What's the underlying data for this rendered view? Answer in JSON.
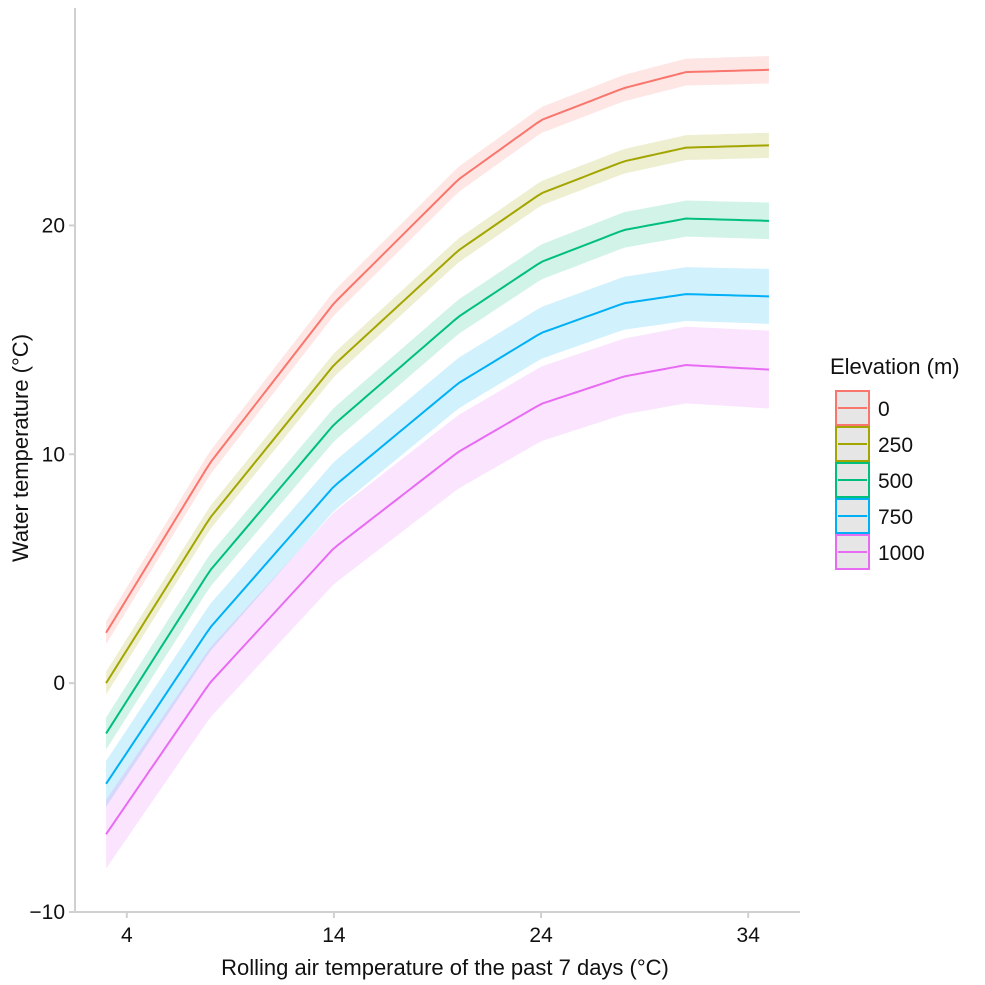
{
  "chart_data": {
    "type": "line",
    "title": "",
    "xlabel": "Rolling air temperature of the past 7 days (°C)",
    "ylabel": "Water temperature (°C)",
    "xlim": [
      1.5,
      36.5
    ],
    "ylim": [
      -10,
      29.5
    ],
    "xticks": [
      4,
      14,
      24,
      34
    ],
    "yticks": [
      -10,
      0,
      10,
      20
    ],
    "xtick_labels": [
      "4",
      "14",
      "24",
      "34"
    ],
    "ytick_labels": [
      "−10",
      "0",
      "10",
      "20"
    ],
    "grid": false,
    "x_range": [
      3,
      35
    ],
    "legend": {
      "title": "Elevation (m)",
      "position": "right"
    },
    "series": [
      {
        "name": "0",
        "color": "#F8766D",
        "points": [
          [
            3,
            2.2
          ],
          [
            8,
            9.6
          ],
          [
            14,
            16.6
          ],
          [
            20,
            22.0
          ],
          [
            24,
            24.6
          ],
          [
            28,
            26.0
          ],
          [
            31,
            26.7
          ],
          [
            35,
            26.8
          ]
        ],
        "band_halfwidth_start": 0.5,
        "band_halfwidth_end": 0.6
      },
      {
        "name": "250",
        "color": "#A3A500",
        "points": [
          [
            3,
            0.0
          ],
          [
            8,
            7.2
          ],
          [
            14,
            13.9
          ],
          [
            20,
            18.9
          ],
          [
            24,
            21.4
          ],
          [
            28,
            22.8
          ],
          [
            31,
            23.4
          ],
          [
            35,
            23.5
          ]
        ],
        "band_halfwidth_start": 0.5,
        "band_halfwidth_end": 0.55
      },
      {
        "name": "500",
        "color": "#00BF7D",
        "points": [
          [
            3,
            -2.2
          ],
          [
            8,
            4.9
          ],
          [
            14,
            11.3
          ],
          [
            20,
            16.0
          ],
          [
            24,
            18.4
          ],
          [
            28,
            19.8
          ],
          [
            31,
            20.3
          ],
          [
            35,
            20.2
          ]
        ],
        "band_halfwidth_start": 0.7,
        "band_halfwidth_end": 0.8
      },
      {
        "name": "750",
        "color": "#00B0F6",
        "points": [
          [
            3,
            -4.4
          ],
          [
            8,
            2.4
          ],
          [
            14,
            8.6
          ],
          [
            20,
            13.1
          ],
          [
            24,
            15.3
          ],
          [
            28,
            16.6
          ],
          [
            31,
            17.0
          ],
          [
            35,
            16.9
          ]
        ],
        "band_halfwidth_start": 1.0,
        "band_halfwidth_end": 1.2
      },
      {
        "name": "1000",
        "color": "#E76BF3",
        "points": [
          [
            3,
            -6.6
          ],
          [
            8,
            0.0
          ],
          [
            14,
            5.9
          ],
          [
            20,
            10.1
          ],
          [
            24,
            12.2
          ],
          [
            28,
            13.4
          ],
          [
            31,
            13.9
          ],
          [
            35,
            13.7
          ]
        ],
        "band_halfwidth_start": 1.5,
        "band_halfwidth_end": 1.7
      }
    ]
  }
}
